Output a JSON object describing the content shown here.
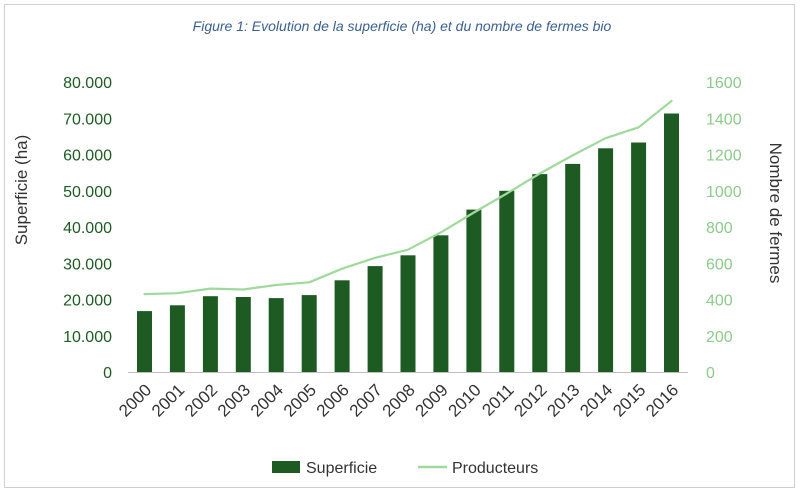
{
  "colors": {
    "bars": "#1e5b23",
    "line": "#9fd99c",
    "left_ticks": "#1e5b23",
    "right_ticks": "#8ccb89",
    "title": "#3b6090",
    "text": "#333333",
    "baseline": "#bfbfbf",
    "frame": "#cfcfcf"
  },
  "chart_data": {
    "type": "bar",
    "title": "Figure 1: Evolution de la superficie (ha) et du nombre de fermes bio",
    "categories": [
      "2000",
      "2001",
      "2002",
      "2003",
      "2004",
      "2005",
      "2006",
      "2007",
      "2008",
      "2009",
      "2010",
      "2011",
      "2012",
      "2013",
      "2014",
      "2015",
      "2016"
    ],
    "series": [
      {
        "name": "Superficie",
        "type": "bar",
        "axis": "left",
        "values": [
          16800,
          18400,
          20900,
          20700,
          20400,
          21200,
          25300,
          29200,
          32200,
          37700,
          44800,
          50000,
          54600,
          57400,
          61700,
          63300,
          71300
        ]
      },
      {
        "name": "Producteurs",
        "type": "line",
        "axis": "right",
        "values": [
          430,
          435,
          460,
          455,
          480,
          495,
          570,
          630,
          675,
          770,
          880,
          985,
          1095,
          1195,
          1290,
          1350,
          1495
        ]
      }
    ],
    "ylabel": "Superficie (ha)",
    "y2label": "Nombre de fermes",
    "ylim": [
      0,
      80000
    ],
    "y2lim": [
      0,
      1600
    ],
    "yticks": [
      0,
      10000,
      20000,
      30000,
      40000,
      50000,
      60000,
      70000,
      80000
    ],
    "ytick_labels": [
      "0",
      "10.000",
      "20.000",
      "30.000",
      "40.000",
      "50.000",
      "60.000",
      "70.000",
      "80.000"
    ],
    "y2ticks": [
      0,
      200,
      400,
      600,
      800,
      1000,
      1200,
      1400,
      1600
    ],
    "y2tick_labels": [
      "0",
      "200",
      "400",
      "600",
      "800",
      "1000",
      "1200",
      "1400",
      "1600"
    ],
    "grid": false,
    "legend": "bottom"
  }
}
